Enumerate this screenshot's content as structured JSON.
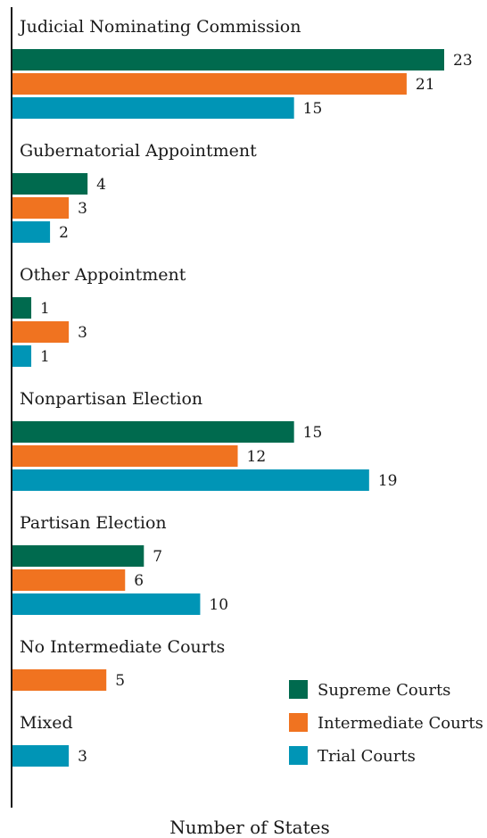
{
  "chart_data": {
    "type": "bar",
    "orientation": "horizontal",
    "xlabel": "Number of States",
    "xlim": [
      0,
      25
    ],
    "grid": false,
    "legend_position": "bottom-right",
    "colors": {
      "Supreme Courts": "#006a4e",
      "Intermediate Courts": "#f07320",
      "Trial Courts": "#0095b6"
    },
    "legend": [
      "Supreme Courts",
      "Intermediate Courts",
      "Trial Courts"
    ],
    "groups": [
      {
        "label": "Judicial Nominating Commission",
        "bars": [
          {
            "series": "Supreme Courts",
            "value": 23
          },
          {
            "series": "Intermediate Courts",
            "value": 21
          },
          {
            "series": "Trial Courts",
            "value": 15
          }
        ]
      },
      {
        "label": "Gubernatorial Appointment",
        "bars": [
          {
            "series": "Supreme Courts",
            "value": 4
          },
          {
            "series": "Intermediate Courts",
            "value": 3
          },
          {
            "series": "Trial Courts",
            "value": 2
          }
        ]
      },
      {
        "label": "Other Appointment",
        "bars": [
          {
            "series": "Supreme Courts",
            "value": 1
          },
          {
            "series": "Intermediate Courts",
            "value": 3
          },
          {
            "series": "Trial Courts",
            "value": 1
          }
        ]
      },
      {
        "label": "Nonpartisan Election",
        "bars": [
          {
            "series": "Supreme Courts",
            "value": 15
          },
          {
            "series": "Intermediate Courts",
            "value": 12
          },
          {
            "series": "Trial Courts",
            "value": 19
          }
        ]
      },
      {
        "label": "Partisan Election",
        "bars": [
          {
            "series": "Supreme Courts",
            "value": 7
          },
          {
            "series": "Intermediate Courts",
            "value": 6
          },
          {
            "series": "Trial Courts",
            "value": 10
          }
        ]
      },
      {
        "label": "No Intermediate Courts",
        "bars": [
          {
            "series": "Intermediate Courts",
            "value": 5
          }
        ]
      },
      {
        "label": "Mixed",
        "bars": [
          {
            "series": "Trial Courts",
            "value": 3
          }
        ]
      }
    ]
  }
}
